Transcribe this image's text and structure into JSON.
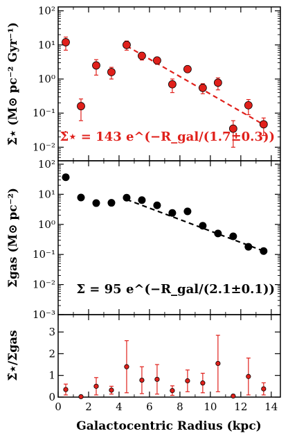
{
  "colors": {
    "sfr": "#e0201b",
    "gas": "#000000",
    "frame": "#000000"
  },
  "chart_data": [
    {
      "type": "scatter",
      "scale": "log",
      "ylim": [
        0.004,
        130
      ],
      "xlim": [
        0,
        14.6
      ],
      "ylabel": "Σ̇⋆ (M⊙ pc⁻² Gyr⁻¹)",
      "yticks": [
        0.01,
        0.1,
        1,
        10,
        100
      ],
      "yticklabels": [
        "10⁻²",
        "10⁻¹",
        "10⁰",
        "10¹",
        "10²"
      ],
      "annotation": "Σ̇⋆ = 143 e^(−R_gal/(1.7±0.3))",
      "points": [
        {
          "x": 0.5,
          "y": 12,
          "err": 5
        },
        {
          "x": 1.5,
          "y": 0.16,
          "err": 0.1
        },
        {
          "x": 2.5,
          "y": 2.5,
          "err": 1.2
        },
        {
          "x": 3.5,
          "y": 1.6,
          "err": 0.6
        },
        {
          "x": 4.5,
          "y": 10,
          "err": 3
        },
        {
          "x": 5.5,
          "y": 4.8,
          "err": 1.2
        },
        {
          "x": 6.5,
          "y": 3.5,
          "err": 0.8
        },
        {
          "x": 7.5,
          "y": 0.7,
          "err": 0.3
        },
        {
          "x": 8.5,
          "y": 1.95,
          "err": 0.4
        },
        {
          "x": 9.5,
          "y": 0.55,
          "err": 0.18
        },
        {
          "x": 10.5,
          "y": 0.78,
          "err": 0.3
        },
        {
          "x": 11.5,
          "y": 0.035,
          "err": 0.025
        },
        {
          "x": 12.5,
          "y": 0.17,
          "err": 0.08
        },
        {
          "x": 13.5,
          "y": 0.047,
          "err": 0.025
        }
      ],
      "fit": {
        "x": [
          4.5,
          13.5
        ],
        "y": [
          9.3,
          0.046
        ]
      }
    },
    {
      "type": "scatter",
      "scale": "log",
      "ylim": [
        0.001,
        130
      ],
      "xlim": [
        0,
        14.6
      ],
      "ylabel": "Σgas (M⊙ pc⁻²)",
      "yticks": [
        0.001,
        0.01,
        0.1,
        1,
        10,
        100
      ],
      "yticklabels": [
        "10⁻³",
        "10⁻²",
        "10⁻¹",
        "10⁰",
        "10¹",
        "10²"
      ],
      "annotation": "Σ = 95 e^(−R_gal/(2.1±0.1))",
      "points": [
        {
          "x": 0.5,
          "y": 37
        },
        {
          "x": 1.5,
          "y": 7.8
        },
        {
          "x": 2.5,
          "y": 5.1
        },
        {
          "x": 3.5,
          "y": 5.2
        },
        {
          "x": 4.5,
          "y": 7.7
        },
        {
          "x": 5.5,
          "y": 6.4
        },
        {
          "x": 6.5,
          "y": 4.3
        },
        {
          "x": 7.5,
          "y": 2.4
        },
        {
          "x": 8.5,
          "y": 2.7
        },
        {
          "x": 9.5,
          "y": 0.9
        },
        {
          "x": 10.5,
          "y": 0.5
        },
        {
          "x": 11.5,
          "y": 0.4
        },
        {
          "x": 12.5,
          "y": 0.18
        },
        {
          "x": 13.5,
          "y": 0.13
        }
      ],
      "fit": {
        "x": [
          4.5,
          13.5
        ],
        "y": [
          6.7,
          0.13
        ]
      }
    },
    {
      "type": "scatter",
      "scale": "linear",
      "ylim": [
        0,
        3.8
      ],
      "xlim": [
        0,
        14.6
      ],
      "ylabel": "Σ̇⋆/Σgas",
      "yticks": [
        0,
        1,
        2,
        3
      ],
      "yticklabels": [
        "0",
        "1",
        "2",
        "3"
      ],
      "xlabel": "Galactocentric Radius (kpc)",
      "xticks": [
        0,
        2,
        4,
        6,
        8,
        10,
        12,
        14
      ],
      "xticklabels": [
        "0",
        "2",
        "4",
        "6",
        "8",
        "10",
        "12",
        "14"
      ],
      "points": [
        {
          "x": 0.5,
          "y": 0.35,
          "err": 0.25
        },
        {
          "x": 1.5,
          "y": 0.02,
          "err": 0.02
        },
        {
          "x": 2.5,
          "y": 0.5,
          "err": 0.4
        },
        {
          "x": 3.5,
          "y": 0.32,
          "err": 0.18
        },
        {
          "x": 4.5,
          "y": 1.4,
          "err": 1.2
        },
        {
          "x": 5.5,
          "y": 0.78,
          "err": 0.62
        },
        {
          "x": 6.5,
          "y": 0.82,
          "err": 0.68
        },
        {
          "x": 7.5,
          "y": 0.3,
          "err": 0.22
        },
        {
          "x": 8.5,
          "y": 0.75,
          "err": 0.5
        },
        {
          "x": 9.5,
          "y": 0.65,
          "err": 0.45
        },
        {
          "x": 10.5,
          "y": 1.55,
          "err": 1.3
        },
        {
          "x": 11.5,
          "y": 0.05,
          "err": 0.04
        },
        {
          "x": 12.5,
          "y": 0.95,
          "err": 0.85
        },
        {
          "x": 13.5,
          "y": 0.38,
          "err": 0.28
        }
      ]
    }
  ]
}
